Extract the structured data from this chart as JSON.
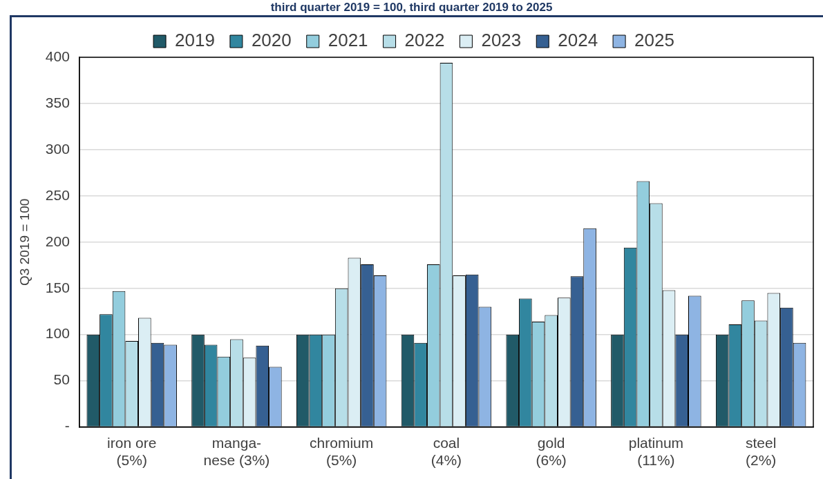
{
  "chart_data": {
    "type": "bar",
    "title": "third quarter 2019 = 100, third quarter 2019 to 2025",
    "ylabel": "Q3 2019 = 100",
    "categories": [
      "iron ore\n(5%)",
      "manga-\nnese (3%)",
      "chromium\n(5%)",
      "coal\n(4%)",
      "gold\n(6%)",
      "platinum\n(11%)",
      "steel\n(2%)"
    ],
    "series": [
      {
        "name": "2019",
        "color": "#215a68",
        "values": [
          100,
          100,
          100,
          100,
          100,
          100,
          100
        ]
      },
      {
        "name": "2020",
        "color": "#31869f",
        "values": [
          122,
          89,
          100,
          91,
          139,
          194,
          111
        ]
      },
      {
        "name": "2021",
        "color": "#93cddd",
        "values": [
          147,
          76,
          100,
          176,
          114,
          266,
          137
        ]
      },
      {
        "name": "2022",
        "color": "#b7dee8",
        "values": [
          93,
          95,
          150,
          394,
          121,
          242,
          115
        ]
      },
      {
        "name": "2023",
        "color": "#dbeef4",
        "values": [
          118,
          75,
          183,
          164,
          140,
          148,
          145
        ]
      },
      {
        "name": "2024",
        "color": "#366092",
        "values": [
          91,
          88,
          176,
          165,
          163,
          100,
          129
        ]
      },
      {
        "name": "2025",
        "color": "#8eb4e3",
        "values": [
          89,
          65,
          164,
          130,
          215,
          142,
          91
        ]
      }
    ],
    "ylim": [
      0,
      400
    ],
    "yticks": [
      {
        "value": 0,
        "label": "-"
      },
      50,
      100,
      150,
      200,
      250,
      300,
      350,
      400
    ],
    "grid": "y",
    "legend": "top"
  }
}
